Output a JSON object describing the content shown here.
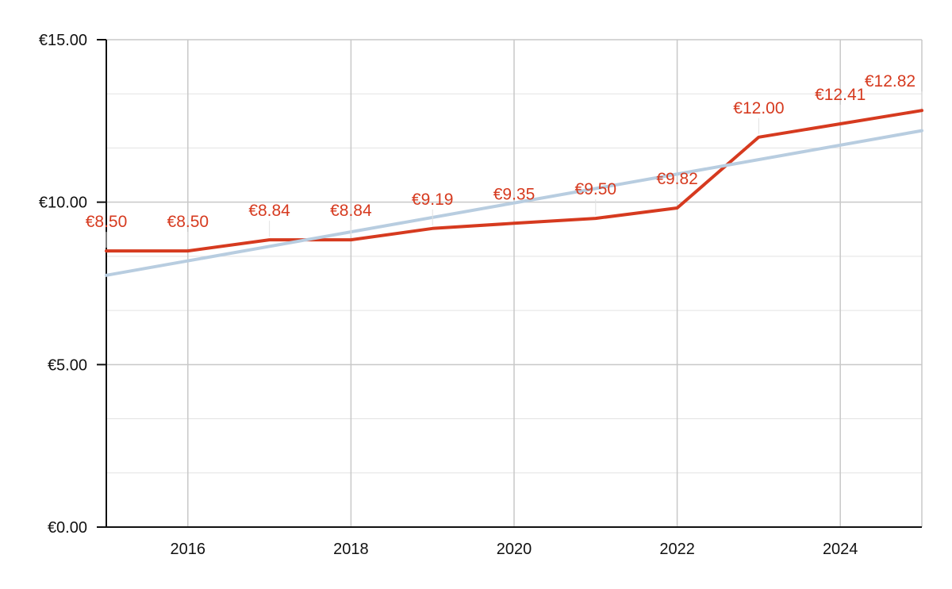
{
  "chart_data": {
    "type": "line",
    "title": "",
    "xlabel": "",
    "ylabel": "",
    "x": [
      2015,
      2016,
      2017,
      2018,
      2019,
      2020,
      2021,
      2022,
      2023,
      2024,
      2025
    ],
    "xlim": [
      2015,
      2025
    ],
    "ylim": [
      0,
      15
    ],
    "x_ticks": [
      2016,
      2018,
      2020,
      2022,
      2024
    ],
    "x_tick_labels": [
      "2016",
      "2018",
      "2020",
      "2022",
      "2024"
    ],
    "y_ticks": [
      0,
      5,
      10,
      15
    ],
    "y_tick_labels": [
      "€0.00",
      "€5.00",
      "€10.00",
      "€15.00"
    ],
    "y_minor_step": 1.6667,
    "grid": true,
    "legend": "none",
    "series": [
      {
        "values": [
          8.5,
          8.5,
          8.84,
          8.84,
          9.19,
          9.35,
          9.5,
          9.82,
          12.0,
          12.41,
          12.82
        ],
        "data_labels": [
          "€8.50",
          "€8.50",
          "€8.84",
          "€8.84",
          "€9.19",
          "€9.35",
          "€9.50",
          "€9.82",
          "€12.00",
          "€12.41",
          "€12.82"
        ],
        "color": "#d63a1f"
      },
      {
        "trendline": true,
        "values": [
          7.75,
          12.2
        ],
        "x": [
          2015,
          2025
        ],
        "color": "#b8cde0"
      }
    ]
  }
}
